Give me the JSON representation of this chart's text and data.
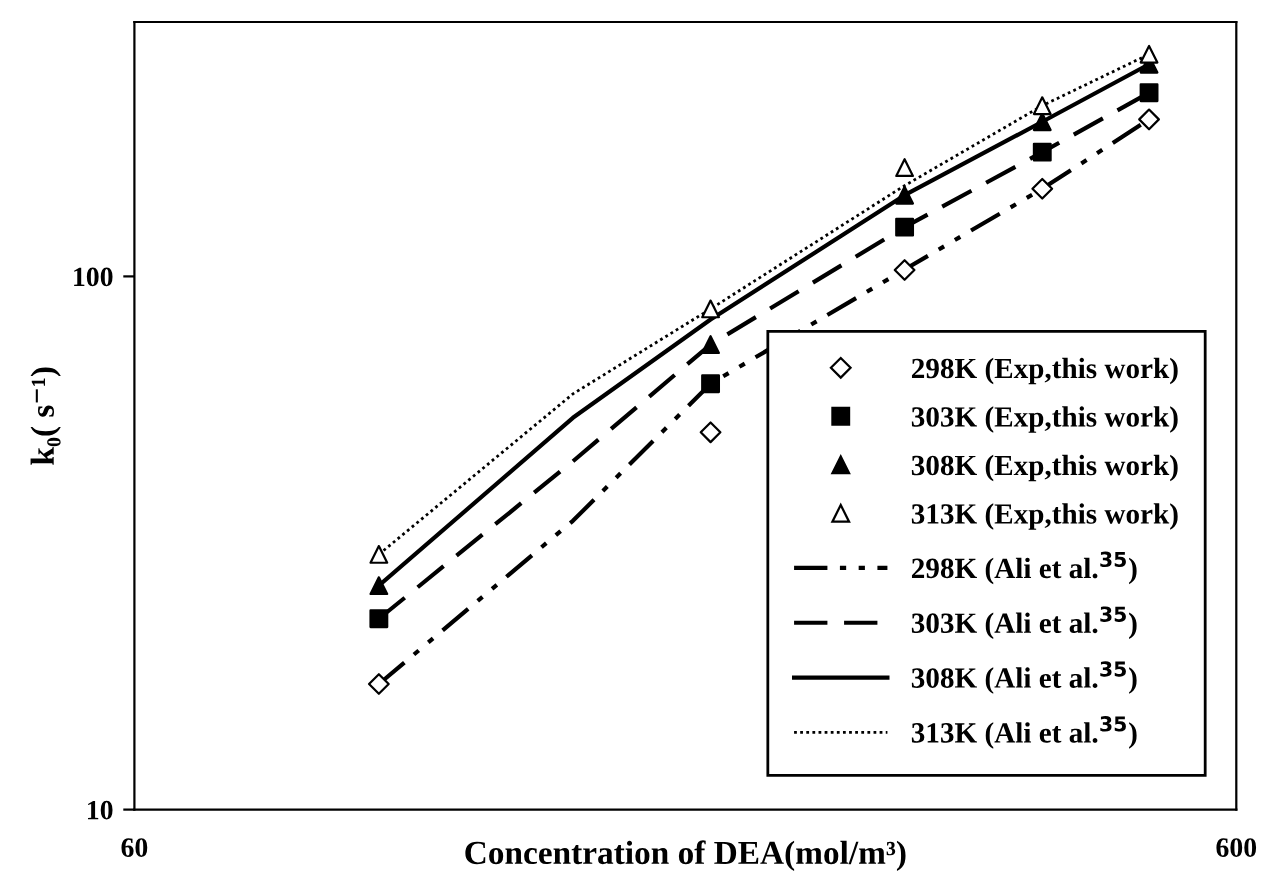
{
  "chart_data": {
    "type": "scatter",
    "xlabel": "Concentration of DEA(mol/m³)",
    "ylabel": "k₀( s⁻¹)",
    "log": "xy",
    "xlim": [
      60,
      600
    ],
    "xticks": [
      60,
      600
    ],
    "ylim": [
      10,
      300
    ],
    "yticks": [
      10,
      100
    ],
    "grid": false,
    "legend": "bottom right",
    "x": [
      100,
      200,
      300,
      400,
      500
    ],
    "series": [
      {
        "name": "298K (Exp,this work)",
        "marker": "diamond",
        "color": "#ffffff",
        "values": [
          17.2,
          51.0,
          102.8,
          146,
          197
        ]
      },
      {
        "name": "303K (Exp,this work)",
        "marker": "square",
        "color": "#000000",
        "values": [
          22.8,
          62.9,
          123.7,
          171,
          221
        ]
      },
      {
        "name": "308K (Exp,this work)",
        "marker": "triangle",
        "color": "#000000",
        "values": [
          26.3,
          74.5,
          142,
          195,
          250
        ]
      },
      {
        "name": "313K (Exp,this work)",
        "marker": "triangle",
        "color": "#ffffff",
        "values": [
          30.1,
          86.9,
          160,
          209,
          261
        ]
      },
      {
        "name": "298K (Ali et al.$^{35}$)",
        "type": "line",
        "line_style": "dashdot",
        "color": "#000000",
        "x": [
          100,
          150,
          200,
          300,
          400,
          500
        ],
        "values": [
          17.2,
          34.8,
          62.9,
          103,
          146,
          197
        ]
      },
      {
        "name": "303K (Ali et al.$^{35}$)",
        "type": "line",
        "line_style": "dashed",
        "color": "#000000",
        "x": [
          100,
          150,
          200,
          300,
          400,
          500
        ],
        "values": [
          22.8,
          45,
          74.5,
          123.7,
          171,
          221
        ]
      },
      {
        "name": "308K (Ali et al.$^{35}$)",
        "type": "line",
        "line_style": "solid",
        "color": "#000000",
        "x": [
          100,
          150,
          200,
          300,
          400,
          500
        ],
        "values": [
          26.3,
          54.3,
          83,
          142,
          195,
          250
        ]
      },
      {
        "name": "313K (Ali et al.$^{35}$)",
        "type": "line",
        "line_style": "dotted",
        "color": "#000000",
        "x": [
          100,
          150,
          200,
          300,
          400,
          500
        ],
        "values": [
          30.1,
          60.2,
          86.9,
          148,
          209,
          261
        ]
      }
    ]
  }
}
